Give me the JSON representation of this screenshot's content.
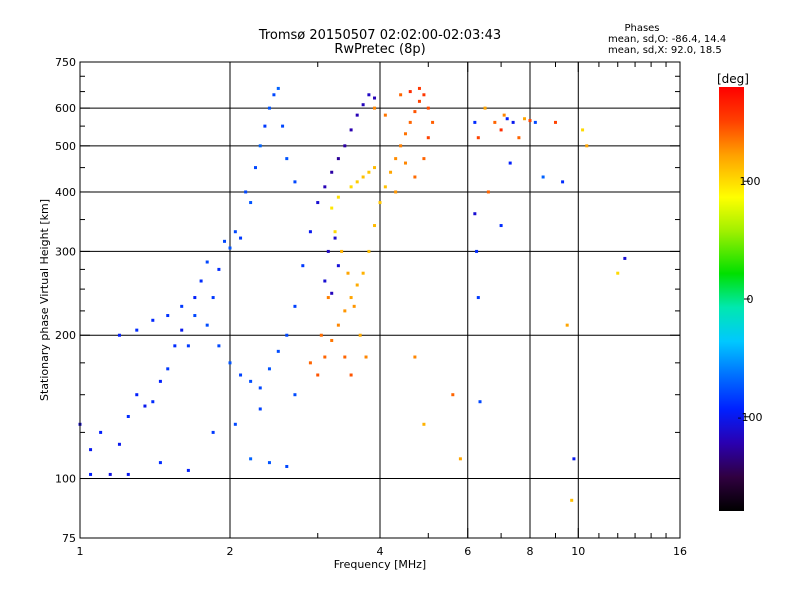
{
  "chart_data": {
    "type": "scatter",
    "title": "Tromsø 20150507 02:02:00-02:03:43",
    "subtitle": "RwPretec (8p)",
    "xlabel": "Frequency [MHz]",
    "ylabel": "Stationary phase Virtual Height [km]",
    "x_scale": "log",
    "y_scale": "log",
    "xlim": [
      1,
      16
    ],
    "ylim": [
      75,
      750
    ],
    "x_ticks": [
      1,
      2,
      4,
      6,
      8,
      10,
      16
    ],
    "x_tick_labels": [
      "1",
      "2",
      "4",
      "6",
      "8",
      "10",
      "16"
    ],
    "x_minor_ticks": [
      3,
      5,
      7,
      9,
      11,
      12,
      13,
      14,
      15
    ],
    "y_ticks": [
      75,
      100,
      200,
      300,
      400,
      500,
      600,
      750
    ],
    "y_tick_labels": [
      "75",
      "100",
      "200",
      "300",
      "400",
      "500",
      "600",
      "750"
    ],
    "y_minor_ticks": [
      125,
      150,
      175,
      225,
      250,
      275,
      350,
      450,
      550,
      650,
      700
    ],
    "grid_x": [
      2,
      4,
      6,
      8,
      10
    ],
    "grid_y": [
      100,
      200,
      300,
      400,
      500,
      600
    ],
    "grid": true,
    "stats": {
      "title": "Phases",
      "line_o": "mean, sd,O: -86.4, 14.4",
      "line_x": "mean, sd,X:  92.0, 18.5"
    },
    "colorbar": {
      "label": "[deg]",
      "range": [
        -180,
        180
      ],
      "ticks": [
        100,
        0,
        -100
      ],
      "tick_labels": [
        "100",
        "0",
        "-100"
      ],
      "colormap": "rainbow"
    },
    "series": [
      {
        "points": [
          [
            1.0,
            130,
            -110
          ],
          [
            1.05,
            115,
            -100
          ],
          [
            1.1,
            125,
            -95
          ],
          [
            1.15,
            102,
            -105
          ],
          [
            1.2,
            118,
            -100
          ],
          [
            1.25,
            135,
            -90
          ],
          [
            1.3,
            150,
            -95
          ],
          [
            1.35,
            142,
            -100
          ],
          [
            1.4,
            145,
            -90
          ],
          [
            1.45,
            160,
            -95
          ],
          [
            1.5,
            170,
            -85
          ],
          [
            1.55,
            190,
            -90
          ],
          [
            1.6,
            205,
            -100
          ],
          [
            1.65,
            190,
            -85
          ],
          [
            1.7,
            240,
            -95
          ],
          [
            1.75,
            260,
            -90
          ],
          [
            1.8,
            285,
            -80
          ],
          [
            1.85,
            240,
            -85
          ],
          [
            1.9,
            275,
            -90
          ],
          [
            1.95,
            315,
            -80
          ],
          [
            2.0,
            305,
            -75
          ],
          [
            2.05,
            330,
            -80
          ],
          [
            2.1,
            320,
            -85
          ],
          [
            2.15,
            400,
            -80
          ],
          [
            2.2,
            380,
            -75
          ],
          [
            2.25,
            450,
            -80
          ],
          [
            2.3,
            500,
            -70
          ],
          [
            2.35,
            550,
            -85
          ],
          [
            2.4,
            600,
            -75
          ],
          [
            2.45,
            640,
            -80
          ],
          [
            2.5,
            660,
            -70
          ],
          [
            2.55,
            550,
            -80
          ],
          [
            2.6,
            470,
            -75
          ],
          [
            2.7,
            420,
            -80
          ],
          [
            1.2,
            200,
            -95
          ],
          [
            1.3,
            205,
            -90
          ],
          [
            1.4,
            215,
            -92
          ],
          [
            1.5,
            220,
            -88
          ],
          [
            1.6,
            230,
            -85
          ],
          [
            1.7,
            220,
            -80
          ],
          [
            1.8,
            210,
            -78
          ],
          [
            1.9,
            190,
            -80
          ],
          [
            2.0,
            175,
            -75
          ],
          [
            2.1,
            165,
            -82
          ],
          [
            2.2,
            160,
            -78
          ],
          [
            2.3,
            155,
            -80
          ],
          [
            2.4,
            170,
            -76
          ],
          [
            2.5,
            185,
            -78
          ],
          [
            2.6,
            200,
            -80
          ],
          [
            2.7,
            230,
            -82
          ],
          [
            2.8,
            280,
            -85
          ],
          [
            2.9,
            330,
            -100
          ],
          [
            3.0,
            380,
            -110
          ],
          [
            3.1,
            410,
            -120
          ],
          [
            3.2,
            440,
            -125
          ],
          [
            3.3,
            470,
            -128
          ],
          [
            3.4,
            500,
            -125
          ],
          [
            3.5,
            540,
            -122
          ],
          [
            3.6,
            580,
            -120
          ],
          [
            3.7,
            610,
            -118
          ],
          [
            3.8,
            640,
            -115
          ],
          [
            3.9,
            630,
            -120
          ],
          [
            3.1,
            260,
            -110
          ],
          [
            3.15,
            300,
            -115
          ],
          [
            3.2,
            245,
            -118
          ],
          [
            3.25,
            320,
            -112
          ],
          [
            3.3,
            280,
            -108
          ],
          [
            1.05,
            102,
            -95
          ],
          [
            1.25,
            102,
            -100
          ],
          [
            1.45,
            108,
            -90
          ],
          [
            1.65,
            104,
            -95
          ],
          [
            2.2,
            110,
            -70
          ],
          [
            2.4,
            108,
            -75
          ],
          [
            2.6,
            106,
            -80
          ],
          [
            1.85,
            125,
            -85
          ],
          [
            2.05,
            130,
            -80
          ],
          [
            2.3,
            140,
            -82
          ],
          [
            2.7,
            150,
            -78
          ]
        ]
      },
      {
        "points": [
          [
            2.9,
            175,
            140
          ],
          [
            3.0,
            165,
            145
          ],
          [
            3.1,
            180,
            140
          ],
          [
            3.2,
            195,
            135
          ],
          [
            3.3,
            210,
            130
          ],
          [
            3.4,
            225,
            125
          ],
          [
            3.5,
            240,
            120
          ],
          [
            3.6,
            255,
            118
          ],
          [
            3.7,
            270,
            115
          ],
          [
            3.8,
            300,
            110
          ],
          [
            3.9,
            340,
            112
          ],
          [
            4.0,
            380,
            108
          ],
          [
            4.1,
            410,
            110
          ],
          [
            4.2,
            440,
            120
          ],
          [
            4.3,
            470,
            128
          ],
          [
            4.4,
            500,
            132
          ],
          [
            4.5,
            530,
            136
          ],
          [
            4.6,
            560,
            140
          ],
          [
            4.7,
            590,
            145
          ],
          [
            4.8,
            620,
            150
          ],
          [
            4.9,
            640,
            155
          ],
          [
            5.0,
            600,
            148
          ],
          [
            5.1,
            560,
            142
          ],
          [
            3.6,
            420,
            105
          ],
          [
            3.7,
            430,
            110
          ],
          [
            3.8,
            440,
            108
          ],
          [
            3.9,
            450,
            112
          ],
          [
            3.5,
            410,
            100
          ],
          [
            3.3,
            390,
            98
          ],
          [
            3.2,
            370,
            95
          ],
          [
            3.25,
            330,
            100
          ],
          [
            3.35,
            300,
            115
          ],
          [
            3.45,
            270,
            120
          ],
          [
            3.55,
            230,
            125
          ],
          [
            3.65,
            200,
            118
          ],
          [
            3.75,
            180,
            130
          ],
          [
            3.05,
            200,
            138
          ],
          [
            3.15,
            240,
            132
          ],
          [
            3.4,
            180,
            140
          ],
          [
            3.5,
            165,
            145
          ],
          [
            5.0,
            520,
            150
          ],
          [
            4.9,
            470,
            140
          ],
          [
            4.7,
            430,
            138
          ],
          [
            4.5,
            460,
            130
          ],
          [
            4.3,
            400,
            125
          ],
          [
            3.9,
            600,
            130
          ],
          [
            4.1,
            580,
            135
          ],
          [
            4.6,
            650,
            160
          ],
          [
            4.4,
            640,
            140
          ],
          [
            4.8,
            660,
            155
          ]
        ]
      },
      {
        "points": [
          [
            6.2,
            560,
            -90
          ],
          [
            6.3,
            520,
            150
          ],
          [
            6.5,
            600,
            120
          ],
          [
            6.8,
            560,
            140
          ],
          [
            7.0,
            540,
            160
          ],
          [
            7.1,
            580,
            130
          ],
          [
            7.2,
            570,
            -95
          ],
          [
            7.4,
            560,
            -100
          ],
          [
            7.6,
            520,
            140
          ],
          [
            7.8,
            570,
            120
          ],
          [
            8.0,
            565,
            150
          ],
          [
            8.2,
            560,
            -80
          ],
          [
            8.5,
            430,
            -70
          ],
          [
            9.0,
            560,
            150
          ],
          [
            9.3,
            420,
            -90
          ],
          [
            9.5,
            210,
            120
          ],
          [
            9.7,
            90,
            110
          ],
          [
            9.8,
            110,
            -100
          ],
          [
            10.2,
            540,
            100
          ],
          [
            10.4,
            500,
            120
          ],
          [
            12.0,
            270,
            100
          ],
          [
            12.4,
            290,
            -110
          ],
          [
            6.2,
            360,
            -110
          ],
          [
            6.25,
            300,
            -90
          ],
          [
            6.3,
            240,
            -85
          ],
          [
            6.35,
            145,
            -80
          ],
          [
            6.6,
            400,
            140
          ],
          [
            7.3,
            460,
            -95
          ],
          [
            7.0,
            340,
            -90
          ],
          [
            5.6,
            150,
            140
          ],
          [
            5.8,
            110,
            120
          ],
          [
            4.7,
            180,
            130
          ],
          [
            4.9,
            130,
            115
          ]
        ]
      }
    ]
  }
}
